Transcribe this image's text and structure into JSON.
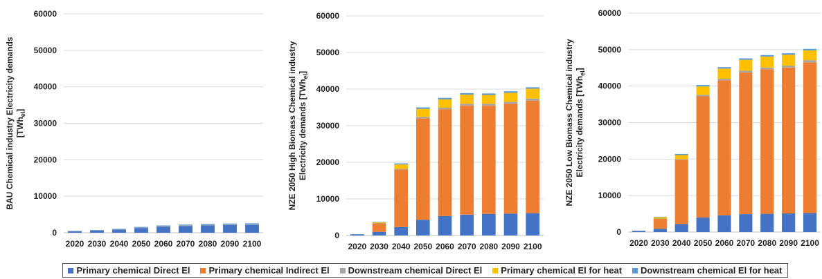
{
  "chart_data": [
    {
      "type": "bar",
      "stacked": true,
      "ylabel": "BAU Chemical industry Electricity demands [TWh_el]",
      "ylabel_lines": [
        "BAU Chemical industry Electricity demands",
        "[TWh",
        "el",
        "]"
      ],
      "categories": [
        "2020",
        "2030",
        "2040",
        "2050",
        "2060",
        "2070",
        "2080",
        "2090",
        "2100"
      ],
      "yticks": [
        "0",
        "10000",
        "20000",
        "30000",
        "40000",
        "50000",
        "60000"
      ],
      "ylim": [
        0,
        60000
      ],
      "grid": true,
      "series": [
        {
          "name": "Primary chemical Direct El",
          "values": [
            400,
            600,
            850,
            1300,
            1650,
            1850,
            2000,
            2100,
            2150
          ]
        },
        {
          "name": "Primary chemical Indirect El",
          "values": [
            0,
            0,
            0,
            0,
            0,
            0,
            0,
            0,
            0
          ]
        },
        {
          "name": "Downstream chemical Direct El",
          "values": [
            40,
            60,
            80,
            120,
            150,
            160,
            170,
            180,
            180
          ]
        },
        {
          "name": "Primary chemical El for heat",
          "values": [
            0,
            0,
            0,
            0,
            0,
            0,
            0,
            0,
            0
          ]
        },
        {
          "name": "Downstream chemical El for heat",
          "values": [
            60,
            90,
            120,
            180,
            200,
            220,
            230,
            240,
            250
          ]
        }
      ]
    },
    {
      "type": "bar",
      "stacked": true,
      "ylabel": "NZE 2050 High Biomass Chemical industry Electricity demands [TWh_el]",
      "ylabel_lines": [
        "NZE 2050 High Biomass Chemical industry",
        "Electricity demands [TWh",
        "el",
        "]"
      ],
      "categories": [
        "2020",
        "2030",
        "2040",
        "2050",
        "2060",
        "2070",
        "2080",
        "2090",
        "2100"
      ],
      "yticks": [
        "0",
        "10000",
        "20000",
        "30000",
        "40000",
        "50000",
        "60000"
      ],
      "ylim": [
        0,
        60000
      ],
      "grid": true,
      "series": [
        {
          "name": "Primary chemical Direct El",
          "values": [
            300,
            1000,
            2300,
            4300,
            5300,
            5700,
            5900,
            6000,
            6100
          ]
        },
        {
          "name": "Primary chemical Indirect El",
          "values": [
            0,
            2300,
            15700,
            27700,
            29200,
            29800,
            29600,
            30000,
            30700
          ]
        },
        {
          "name": "Downstream chemical Direct El",
          "values": [
            30,
            80,
            200,
            400,
            400,
            500,
            500,
            500,
            600
          ]
        },
        {
          "name": "Primary chemical El for heat",
          "values": [
            0,
            200,
            1200,
            2200,
            2300,
            2500,
            2400,
            2500,
            2700
          ]
        },
        {
          "name": "Downstream chemical El for heat",
          "values": [
            50,
            120,
            300,
            400,
            400,
            400,
            400,
            400,
            400
          ]
        }
      ]
    },
    {
      "type": "bar",
      "stacked": true,
      "ylabel": "NZE 2050 Low Biomass Chemical industry Electricity demands [TWh_el]",
      "ylabel_lines": [
        "NZE 2050 Low Biomass Chemical industry",
        "Electricity demands [TWh",
        "el",
        "]"
      ],
      "categories": [
        "2020",
        "2030",
        "2040",
        "2050",
        "2060",
        "2070",
        "2080",
        "2090",
        "2100"
      ],
      "yticks": [
        "0",
        "10000",
        "20000",
        "30000",
        "40000",
        "50000",
        "60000"
      ],
      "ylim": [
        0,
        60000
      ],
      "grid": true,
      "series": [
        {
          "name": "Primary chemical Direct El",
          "values": [
            300,
            900,
            2200,
            4000,
            4600,
            4900,
            5000,
            5100,
            5200
          ]
        },
        {
          "name": "Primary chemical Indirect El",
          "values": [
            0,
            2700,
            17600,
            33200,
            37000,
            38800,
            39600,
            40000,
            41300
          ]
        },
        {
          "name": "Downstream chemical Direct El",
          "values": [
            30,
            80,
            200,
            400,
            400,
            500,
            500,
            500,
            600
          ]
        },
        {
          "name": "Primary chemical El for heat",
          "values": [
            0,
            400,
            1100,
            2300,
            2800,
            3000,
            3000,
            3000,
            2700
          ]
        },
        {
          "name": "Downstream chemical El for heat",
          "values": [
            50,
            120,
            300,
            400,
            400,
            400,
            400,
            400,
            400
          ]
        }
      ]
    }
  ],
  "colors": {
    "primary_direct": "#4472c4",
    "primary_indirect": "#ed7d31",
    "downstream_direct": "#a5a5a5",
    "primary_heat": "#ffc000",
    "downstream_heat": "#5b9bd5",
    "grid": "#d9d9d9",
    "axis": "#bfbfbf"
  },
  "legend": [
    {
      "label": "Primary chemical Direct El",
      "color": "#4472c4"
    },
    {
      "label": "Primary chemical Indirect El",
      "color": "#ed7d31"
    },
    {
      "label": "Downstream chemical Direct El",
      "color": "#a5a5a5"
    },
    {
      "label": "Primary chemical El for heat",
      "color": "#ffc000"
    },
    {
      "label": "Downstream chemical El for heat",
      "color": "#5b9bd5"
    }
  ]
}
